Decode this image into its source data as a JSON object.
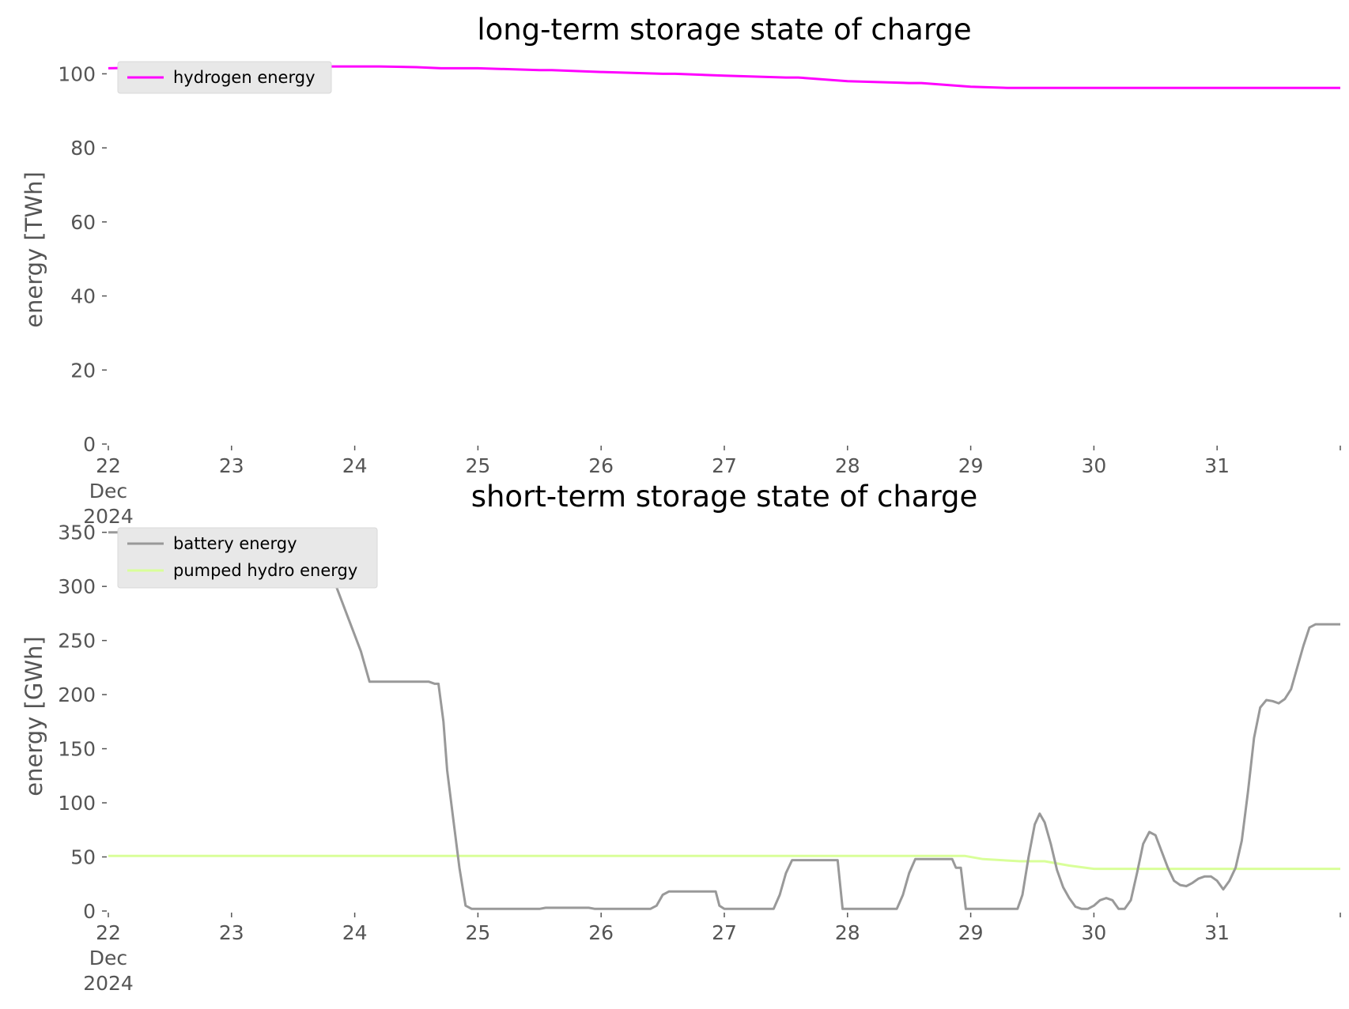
{
  "chart_data": [
    {
      "type": "line",
      "title": "long-term storage state of charge",
      "ylabel": "energy [TWh]",
      "xlabel": "",
      "xlim": [
        22,
        32
      ],
      "ylim": [
        0,
        105
      ],
      "yticks": [
        0,
        20,
        40,
        60,
        80,
        100
      ],
      "xticks": [
        22,
        23,
        24,
        25,
        26,
        27,
        28,
        29,
        30,
        31
      ],
      "xtick_labels": [
        "22",
        "23",
        "24",
        "25",
        "26",
        "27",
        "28",
        "29",
        "30",
        "31"
      ],
      "xtick_sublabels": [
        "Dec",
        "2024"
      ],
      "grid": false,
      "legend_position": "top-left",
      "series": [
        {
          "name": "hydrogen energy",
          "color": "#ff00ff",
          "x": [
            22,
            22.5,
            23,
            23.5,
            24,
            24.2,
            24.5,
            24.7,
            25,
            25.5,
            25.6,
            26,
            26.5,
            26.6,
            27,
            27.5,
            27.6,
            28,
            28.5,
            28.6,
            29,
            29.3,
            29.5,
            30,
            30.5,
            31,
            31.5,
            32
          ],
          "y": [
            101.5,
            101.8,
            102,
            102,
            102,
            102,
            101.8,
            101.5,
            101.5,
            101,
            101,
            100.5,
            100,
            100,
            99.5,
            99,
            99,
            98,
            97.5,
            97.5,
            96.5,
            96.2,
            96.2,
            96.2,
            96.2,
            96.2,
            96.2,
            96.2
          ]
        }
      ]
    },
    {
      "type": "line",
      "title": "short-term storage state of charge",
      "ylabel": "energy [GWh]",
      "xlabel": "",
      "xlim": [
        22,
        32
      ],
      "ylim": [
        0,
        360
      ],
      "yticks": [
        0,
        50,
        100,
        150,
        200,
        250,
        300,
        350
      ],
      "xticks": [
        22,
        23,
        24,
        25,
        26,
        27,
        28,
        29,
        30,
        31
      ],
      "xtick_labels": [
        "22",
        "23",
        "24",
        "25",
        "26",
        "27",
        "28",
        "29",
        "30",
        "31"
      ],
      "xtick_sublabels": [
        "Dec",
        "2024"
      ],
      "grid": false,
      "legend_position": "top-left",
      "series": [
        {
          "name": "battery energy",
          "color": "#999999",
          "x": [
            22,
            23.65,
            23.75,
            23.85,
            23.95,
            24.05,
            24.12,
            24.16,
            24.25,
            24.6,
            24.65,
            24.68,
            24.72,
            24.75,
            24.8,
            24.85,
            24.9,
            24.95,
            25.5,
            25.55,
            25.9,
            25.95,
            26.4,
            26.45,
            26.5,
            26.55,
            26.93,
            26.96,
            27,
            27.4,
            27.45,
            27.5,
            27.55,
            27.92,
            27.96,
            28,
            28.4,
            28.45,
            28.5,
            28.55,
            28.85,
            28.88,
            28.92,
            28.96,
            29,
            29.38,
            29.42,
            29.47,
            29.52,
            29.56,
            29.6,
            29.65,
            29.7,
            29.75,
            29.8,
            29.85,
            29.9,
            29.95,
            30,
            30.05,
            30.1,
            30.15,
            30.2,
            30.25,
            30.3,
            30.35,
            30.4,
            30.45,
            30.5,
            30.55,
            30.6,
            30.65,
            30.7,
            30.75,
            30.8,
            30.85,
            30.9,
            30.95,
            31,
            31.05,
            31.1,
            31.15,
            31.2,
            31.25,
            31.3,
            31.35,
            31.4,
            31.45,
            31.5,
            31.55,
            31.6,
            31.65,
            31.7,
            31.75,
            31.8,
            31.85,
            31.9,
            31.95,
            32
          ],
          "y": [
            350,
            350,
            330,
            300,
            270,
            240,
            212,
            212,
            212,
            212,
            210,
            210,
            175,
            130,
            85,
            40,
            5,
            2,
            2,
            3,
            3,
            2,
            2,
            5,
            15,
            18,
            18,
            5,
            2,
            2,
            15,
            35,
            47,
            47,
            2,
            2,
            2,
            15,
            35,
            48,
            48,
            40,
            40,
            2,
            2,
            2,
            15,
            50,
            80,
            90,
            82,
            62,
            38,
            22,
            12,
            4,
            2,
            2,
            5,
            10,
            12,
            10,
            2,
            2,
            10,
            35,
            62,
            73,
            70,
            55,
            40,
            28,
            24,
            23,
            26,
            30,
            32,
            32,
            28,
            20,
            28,
            40,
            65,
            110,
            160,
            188,
            195,
            194,
            192,
            196,
            205,
            225,
            245,
            262,
            265,
            265,
            265,
            265,
            265
          ]
        },
        {
          "name": "pumped hydro energy",
          "color": "#d9ff99",
          "x": [
            22,
            28.5,
            28.95,
            29.1,
            29.4,
            29.6,
            29.8,
            30,
            30.5,
            31,
            31.5,
            32
          ],
          "y": [
            51,
            51,
            51,
            48,
            46,
            46,
            42,
            39,
            39,
            39,
            39,
            39
          ]
        }
      ]
    }
  ]
}
